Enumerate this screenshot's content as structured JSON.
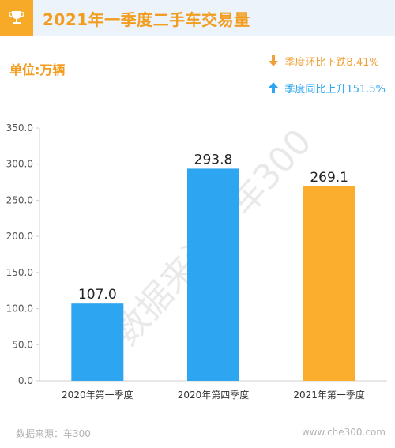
{
  "header": {
    "title": "2021年一季度二手车交易量",
    "icon": "trophy-icon"
  },
  "unit_label": "单位:万辆",
  "legend": {
    "down": {
      "icon": "arrow-down-icon",
      "text": "季度环比下跌8.41%"
    },
    "up": {
      "icon": "arrow-up-icon",
      "text": "季度同比上升151.5%"
    }
  },
  "watermark": "数据来源：车300",
  "footer": {
    "source": "数据来源：车300",
    "site": "www.che300.com"
  },
  "colors": {
    "accent": "#f29d1f",
    "blue": "#2ea5f0",
    "orange": "#fbae2d"
  },
  "chart_data": {
    "type": "bar",
    "categories": [
      "2020年第一季度",
      "2020年第四季度",
      "2021年第一季度"
    ],
    "values": [
      107.0,
      293.8,
      269.1
    ],
    "value_labels": [
      "107.0",
      "293.8",
      "269.1"
    ],
    "bar_colors": [
      "#2ea5f0",
      "#2ea5f0",
      "#fbae2d"
    ],
    "ylim": [
      0,
      350
    ],
    "yticks": [
      "0.0",
      "50.0",
      "100.0",
      "150.0",
      "200.0",
      "250.0",
      "300.0",
      "350.0"
    ],
    "grid": false
  }
}
